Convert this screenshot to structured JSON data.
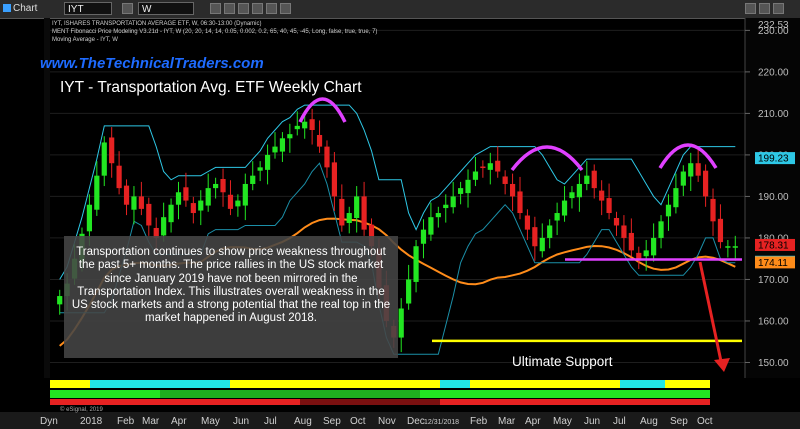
{
  "toolbar": {
    "window_label": "Chart",
    "symbol": "IYT",
    "interval": "W"
  },
  "info_lines": [
    "IYT, ISHARES TRANSPORTATION AVERAGE ETF, W, 06:30-13:00 (Dynamic)",
    "MENT Fibonacci Price Modeling V3.21d - IYT, W (20, 20, 14, 14, 0.05, 0.002, 0.2, 65, 40, 45, -45, Long, false, true, true, 7)",
    "Moving Average - IYT, W"
  ],
  "branding": {
    "site": "www.TheTechnicalTraders.com",
    "title": "IYT - Transportation Avg. ETF Weekly Chart",
    "copyright": "© eSignal, 2019"
  },
  "annotation_text": "Transportation continues to show price weakness throughout the past 5+ months.  The price rallies in the US stock market since January 2019 have not been mirrored in the Transportation Index.  This illustrates overall weakness in the US stock markets and a strong potential that the real top in the market happened in August 2018.",
  "support_label": "Ultimate Support",
  "colors": {
    "up_candle": "#22e622",
    "down_candle": "#e62222",
    "magenta": "#e040ff",
    "support": "#ffff00",
    "cyan": "#2ec8e6",
    "ma": "#ff8c1a"
  },
  "chart_data": {
    "type": "candlestick",
    "symbol": "IYT",
    "interval": "W",
    "y_axis": {
      "ticks": [
        150,
        160,
        170,
        180,
        190,
        200,
        210,
        220,
        230
      ],
      "ylim": [
        146.5,
        232.5
      ],
      "tick_labels": [
        "150.00",
        "160.00",
        "170.00",
        "180.00",
        "190.00",
        "200.00",
        "210.00",
        "220.00",
        "230.00"
      ],
      "top_label": "232.53"
    },
    "x_axis": {
      "labels": [
        "Dyn",
        "2018",
        "Feb",
        "Mar",
        "Apr",
        "May",
        "Jun",
        "Jul",
        "Aug",
        "Sep",
        "Oct",
        "Nov",
        "Dec",
        "12/31/2018",
        "Feb",
        "Mar",
        "Apr",
        "May",
        "Jun",
        "Jul",
        "Aug",
        "Sep",
        "Oct"
      ],
      "weeks_total": 95
    },
    "price_tags": [
      {
        "label": "199.23",
        "value": 199.23,
        "color": "#2ec8e6"
      },
      {
        "label": "178.31",
        "value": 178.31,
        "color": "#e62222"
      },
      {
        "label": "174.26",
        "value": 174.26,
        "color": "#2ec8e6"
      },
      {
        "label": "174.11",
        "value": 174.11,
        "color": "#ff8c1a"
      }
    ],
    "series": [
      {
        "name": "IYT Weekly",
        "close": [
          166,
          169,
          175,
          181,
          188,
          195,
          203,
          198,
          192,
          188,
          190,
          187,
          183,
          180,
          185,
          188,
          191,
          189,
          186,
          189,
          192,
          193,
          191,
          187,
          189,
          193,
          195,
          197,
          200,
          202,
          204,
          205,
          207,
          208,
          206,
          202,
          197,
          190,
          183,
          186,
          190,
          182,
          178,
          168,
          160,
          156,
          163,
          170,
          178,
          182,
          185,
          186,
          188,
          190,
          192,
          194,
          196,
          197,
          198,
          196,
          193,
          190,
          186,
          182,
          178,
          180,
          183,
          186,
          189,
          191,
          193,
          195,
          192,
          189,
          186,
          183,
          180,
          177,
          175,
          177,
          180,
          184,
          188,
          192,
          196,
          198,
          195,
          190,
          184,
          179,
          178,
          178
        ]
      }
    ],
    "levels": [
      {
        "label": "Ultimate Support",
        "value": 155.2,
        "color": "#ffff00"
      },
      {
        "value": 174.8,
        "color": "#e040ff"
      }
    ]
  }
}
